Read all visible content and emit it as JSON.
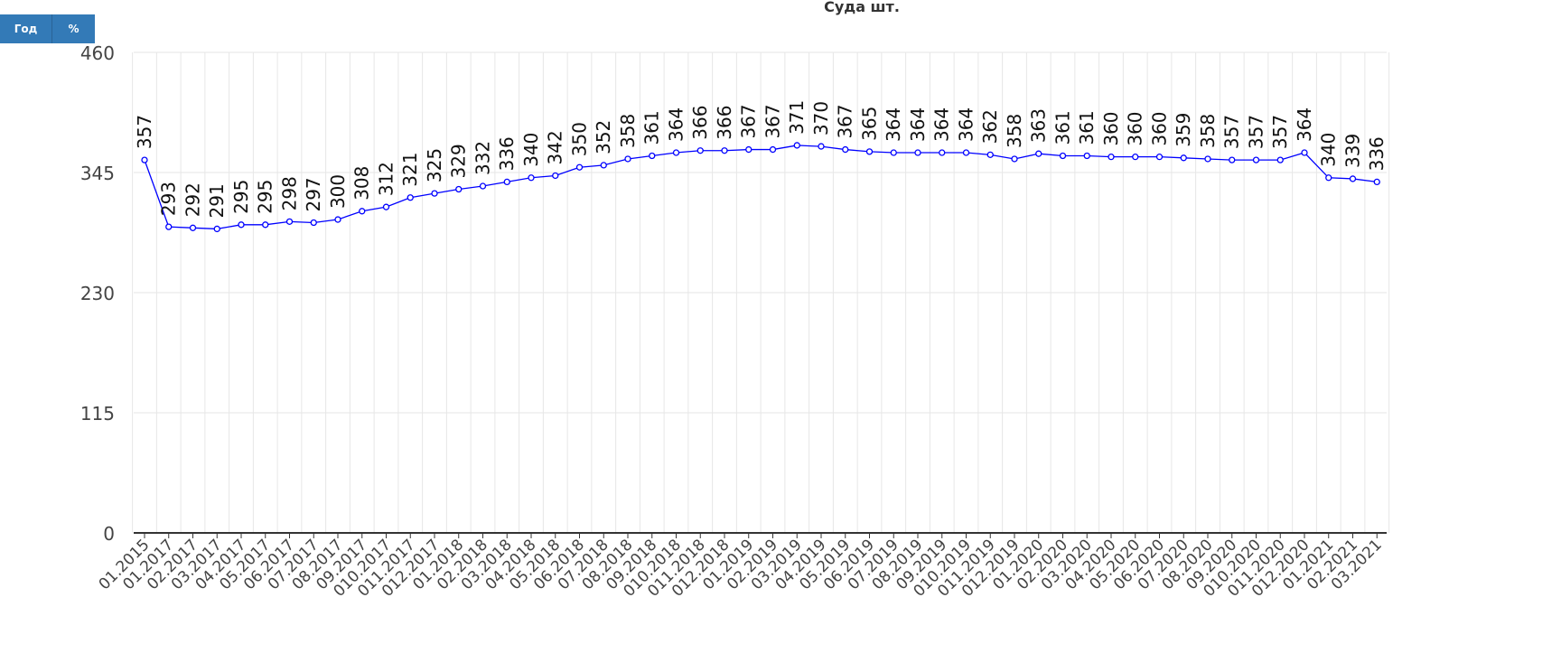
{
  "toolbar": {
    "year_label": "Год",
    "percent_label": "%"
  },
  "chart_data": {
    "type": "line",
    "title": "Суда шт.",
    "xlabel": "",
    "ylabel": "",
    "ylim": [
      0,
      460
    ],
    "yticks": [
      0,
      115,
      230,
      345,
      460
    ],
    "grid": true,
    "data_labels": true,
    "line_color": "#0000ff",
    "categories": [
      "01.2015",
      "01.2017",
      "02.2017",
      "03.2017",
      "04.2017",
      "05.2017",
      "06.2017",
      "07.2017",
      "08.2017",
      "09.2017",
      "010.2017",
      "011.2017",
      "012.2017",
      "01.2018",
      "02.2018",
      "03.2018",
      "04.2018",
      "05.2018",
      "06.2018",
      "07.2018",
      "08.2018",
      "09.2018",
      "010.2018",
      "011.2018",
      "012.2018",
      "01.2019",
      "02.2019",
      "03.2019",
      "04.2019",
      "05.2019",
      "06.2019",
      "07.2019",
      "08.2019",
      "09.2019",
      "010.2019",
      "011.2019",
      "012.2019",
      "01.2020",
      "02.2020",
      "03.2020",
      "04.2020",
      "05.2020",
      "06.2020",
      "07.2020",
      "08.2020",
      "09.2020",
      "010.2020",
      "011.2020",
      "012.2020",
      "01.2021",
      "02.2021",
      "03.2021"
    ],
    "series": [
      {
        "values": [
          357,
          293,
          292,
          291,
          295,
          295,
          298,
          297,
          300,
          308,
          312,
          321,
          325,
          329,
          332,
          336,
          340,
          342,
          350,
          352,
          358,
          361,
          364,
          366,
          366,
          367,
          367,
          371,
          370,
          367,
          365,
          364,
          364,
          364,
          364,
          362,
          358,
          363,
          361,
          361,
          360,
          360,
          360,
          359,
          358,
          357,
          357,
          357,
          364,
          340,
          339,
          336
        ]
      }
    ]
  }
}
